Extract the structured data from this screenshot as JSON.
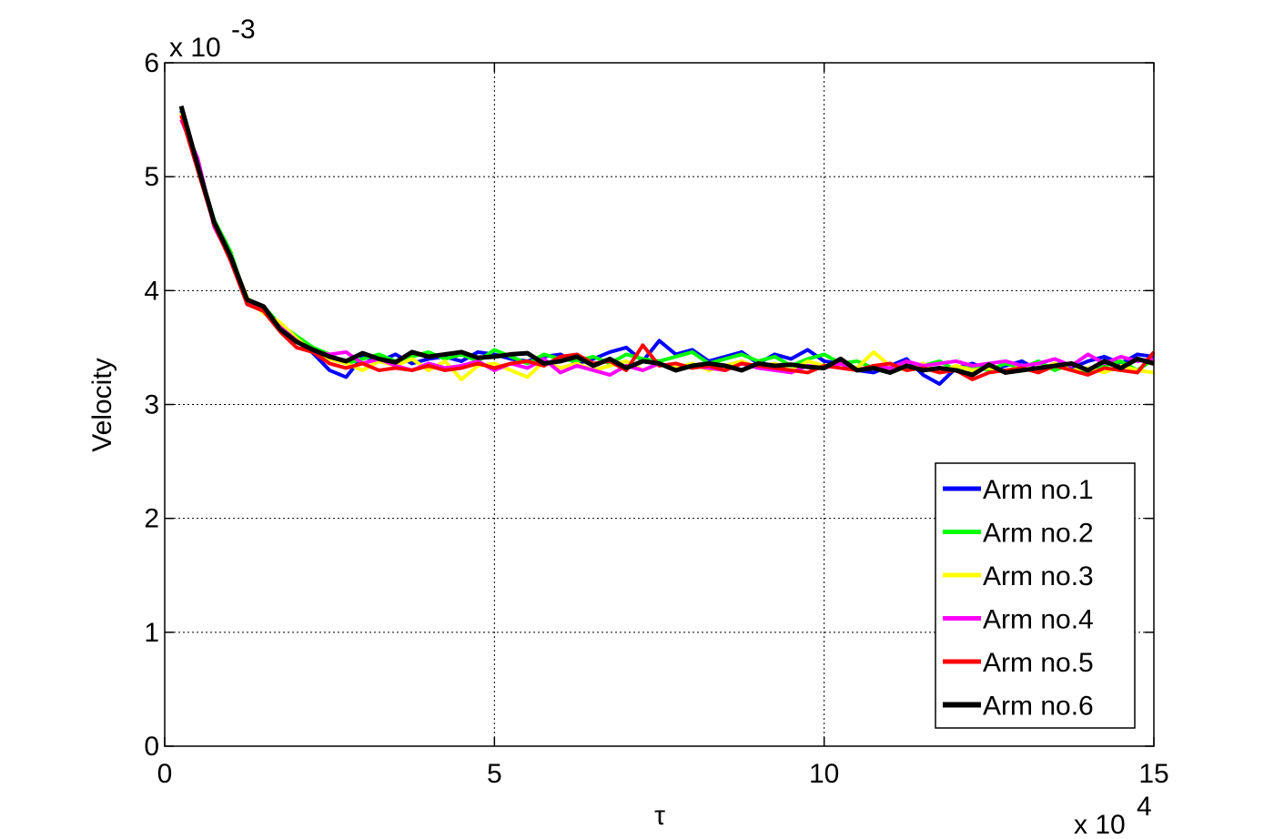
{
  "chart_data": {
    "type": "line",
    "xlabel": "τ",
    "ylabel": "Velocity",
    "x_multiplier": {
      "base": "x 10",
      "exponent": "4"
    },
    "y_multiplier": {
      "base": "x 10",
      "exponent": "-3"
    },
    "xlim": [
      0,
      15
    ],
    "ylim": [
      0,
      6
    ],
    "xticks": [
      0,
      5,
      10,
      15
    ],
    "yticks": [
      0,
      1,
      2,
      3,
      4,
      5,
      6
    ],
    "grid": true,
    "legend": "southeast",
    "x": [
      0.25,
      0.5,
      0.75,
      1,
      1.25,
      1.5,
      1.75,
      2,
      2.25,
      2.5,
      2.75,
      3,
      3.25,
      3.5,
      3.75,
      4,
      4.25,
      4.5,
      4.75,
      5,
      5.25,
      5.5,
      5.75,
      6,
      6.25,
      6.5,
      6.75,
      7,
      7.25,
      7.5,
      7.75,
      8,
      8.25,
      8.5,
      8.75,
      9,
      9.25,
      9.5,
      9.75,
      10,
      10.25,
      10.5,
      10.75,
      11,
      11.25,
      11.5,
      11.75,
      12,
      12.25,
      12.5,
      12.75,
      13,
      13.25,
      13.5,
      13.75,
      14,
      14.25,
      14.5,
      14.75,
      15
    ],
    "series": [
      {
        "name": "Arm no.1",
        "color": "#0000ff",
        "values": [
          5.58,
          5.08,
          4.58,
          4.32,
          3.88,
          3.84,
          3.68,
          3.56,
          3.45,
          3.3,
          3.24,
          3.42,
          3.38,
          3.44,
          3.36,
          3.4,
          3.42,
          3.38,
          3.46,
          3.44,
          3.4,
          3.38,
          3.42,
          3.44,
          3.36,
          3.4,
          3.46,
          3.5,
          3.38,
          3.56,
          3.44,
          3.48,
          3.38,
          3.42,
          3.46,
          3.36,
          3.44,
          3.4,
          3.48,
          3.38,
          3.36,
          3.3,
          3.28,
          3.34,
          3.4,
          3.26,
          3.18,
          3.32,
          3.36,
          3.3,
          3.34,
          3.38,
          3.3,
          3.36,
          3.32,
          3.38,
          3.42,
          3.36,
          3.44,
          3.42
        ]
      },
      {
        "name": "Arm no.2",
        "color": "#00ff00",
        "values": [
          5.6,
          5.1,
          4.62,
          4.34,
          3.9,
          3.86,
          3.7,
          3.6,
          3.5,
          3.44,
          3.36,
          3.4,
          3.44,
          3.38,
          3.42,
          3.46,
          3.4,
          3.44,
          3.38,
          3.48,
          3.42,
          3.36,
          3.44,
          3.4,
          3.38,
          3.42,
          3.36,
          3.44,
          3.4,
          3.38,
          3.42,
          3.46,
          3.36,
          3.4,
          3.44,
          3.38,
          3.42,
          3.34,
          3.4,
          3.44,
          3.36,
          3.38,
          3.32,
          3.36,
          3.3,
          3.34,
          3.38,
          3.3,
          3.34,
          3.3,
          3.36,
          3.32,
          3.38,
          3.3,
          3.36,
          3.28,
          3.34,
          3.38,
          3.3,
          3.4
        ]
      },
      {
        "name": "Arm no.3",
        "color": "#ffff00",
        "values": [
          5.56,
          5.12,
          4.6,
          4.3,
          3.94,
          3.8,
          3.72,
          3.58,
          3.46,
          3.4,
          3.36,
          3.3,
          3.38,
          3.34,
          3.4,
          3.3,
          3.38,
          3.22,
          3.34,
          3.36,
          3.3,
          3.24,
          3.38,
          3.32,
          3.36,
          3.3,
          3.34,
          3.38,
          3.3,
          3.36,
          3.32,
          3.36,
          3.3,
          3.34,
          3.38,
          3.32,
          3.36,
          3.3,
          3.38,
          3.34,
          3.36,
          3.32,
          3.46,
          3.34,
          3.3,
          3.36,
          3.28,
          3.34,
          3.3,
          3.32,
          3.28,
          3.34,
          3.3,
          3.36,
          3.3,
          3.32,
          3.28,
          3.34,
          3.3,
          3.28
        ]
      },
      {
        "name": "Arm no.4",
        "color": "#ff00ff",
        "values": [
          5.5,
          5.16,
          4.56,
          4.28,
          3.9,
          3.82,
          3.68,
          3.56,
          3.46,
          3.44,
          3.46,
          3.36,
          3.4,
          3.34,
          3.3,
          3.36,
          3.32,
          3.34,
          3.38,
          3.3,
          3.36,
          3.32,
          3.4,
          3.28,
          3.34,
          3.3,
          3.26,
          3.34,
          3.3,
          3.36,
          3.3,
          3.34,
          3.32,
          3.3,
          3.36,
          3.32,
          3.3,
          3.28,
          3.34,
          3.32,
          3.36,
          3.3,
          3.34,
          3.32,
          3.38,
          3.34,
          3.36,
          3.38,
          3.34,
          3.36,
          3.38,
          3.34,
          3.36,
          3.4,
          3.34,
          3.44,
          3.36,
          3.42,
          3.38,
          3.4
        ]
      },
      {
        "name": "Arm no.5",
        "color": "#ff0000",
        "values": [
          5.54,
          5.06,
          4.58,
          4.26,
          3.88,
          3.82,
          3.64,
          3.5,
          3.46,
          3.36,
          3.32,
          3.36,
          3.3,
          3.32,
          3.3,
          3.34,
          3.3,
          3.32,
          3.36,
          3.32,
          3.36,
          3.38,
          3.34,
          3.42,
          3.44,
          3.36,
          3.38,
          3.3,
          3.52,
          3.34,
          3.36,
          3.32,
          3.34,
          3.3,
          3.36,
          3.34,
          3.32,
          3.3,
          3.28,
          3.34,
          3.32,
          3.3,
          3.34,
          3.36,
          3.3,
          3.32,
          3.28,
          3.3,
          3.22,
          3.28,
          3.3,
          3.32,
          3.28,
          3.34,
          3.3,
          3.26,
          3.32,
          3.3,
          3.28,
          3.46
        ]
      },
      {
        "name": "Arm no.6",
        "color": "#000000",
        "values": [
          5.62,
          5.1,
          4.6,
          4.3,
          3.92,
          3.86,
          3.66,
          3.55,
          3.48,
          3.42,
          3.38,
          3.45,
          3.4,
          3.37,
          3.46,
          3.42,
          3.44,
          3.46,
          3.41,
          3.42,
          3.44,
          3.45,
          3.36,
          3.38,
          3.42,
          3.34,
          3.4,
          3.32,
          3.38,
          3.36,
          3.3,
          3.34,
          3.36,
          3.34,
          3.3,
          3.36,
          3.34,
          3.35,
          3.33,
          3.32,
          3.4,
          3.3,
          3.32,
          3.28,
          3.34,
          3.3,
          3.32,
          3.3,
          3.26,
          3.35,
          3.28,
          3.3,
          3.32,
          3.34,
          3.36,
          3.3,
          3.38,
          3.32,
          3.4,
          3.36
        ]
      }
    ]
  }
}
